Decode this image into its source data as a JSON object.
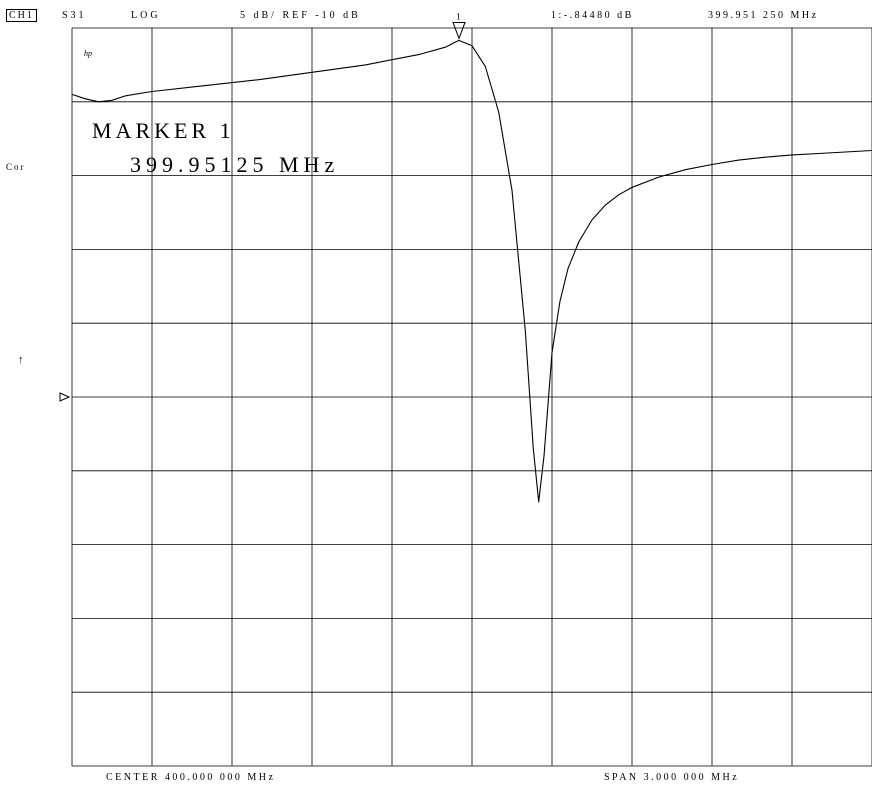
{
  "header": {
    "channel": "CH1",
    "parameter": "S31",
    "format": "LOG",
    "scale": "5 dB/ REF -10 dB",
    "marker_readout": "1:-.84480 dB",
    "marker_freq_readout": "399.951 250 MHz"
  },
  "side": {
    "correction": "Cor",
    "arrow": "↑"
  },
  "footer": {
    "center": "CENTER 400.000 000 MHz",
    "span": "SPAN 3.000 000 MHz"
  },
  "chart_data": {
    "type": "line",
    "title": "",
    "xlabel": "",
    "ylabel": "",
    "x_unit": "MHz",
    "y_unit": "dB",
    "xlim": [
      398.5,
      401.5
    ],
    "ylim": [
      -50,
      0
    ],
    "reference_level": -10,
    "scale_per_div": 5,
    "grid": true,
    "logo": "hp",
    "marker": {
      "number": "1",
      "title": "MARKER 1",
      "frequency_text": "399.95125 MHz",
      "x": 399.95125,
      "y": -0.8448
    },
    "series": [
      {
        "x": [
          398.5,
          398.55,
          398.6,
          398.65,
          398.7,
          398.8,
          399.0,
          399.2,
          399.4,
          399.6,
          399.8,
          399.9,
          399.951,
          400.0,
          400.05,
          400.1,
          400.15,
          400.2,
          400.23,
          400.25,
          400.27,
          400.3,
          400.33,
          400.36,
          400.4,
          400.45,
          400.5,
          400.55,
          400.6,
          400.7,
          400.8,
          400.9,
          401.0,
          401.1,
          401.2,
          401.3,
          401.5
        ],
        "y": [
          -4.5,
          -4.8,
          -5.0,
          -4.9,
          -4.6,
          -4.3,
          -3.9,
          -3.5,
          -3.0,
          -2.5,
          -1.8,
          -1.3,
          -0.84,
          -1.2,
          -2.6,
          -5.7,
          -11.0,
          -20.5,
          -28.5,
          -32.1,
          -29.0,
          -22.0,
          -18.5,
          -16.3,
          -14.5,
          -13.0,
          -12.0,
          -11.3,
          -10.8,
          -10.1,
          -9.6,
          -9.25,
          -8.95,
          -8.75,
          -8.6,
          -8.5,
          -8.3
        ]
      }
    ]
  }
}
